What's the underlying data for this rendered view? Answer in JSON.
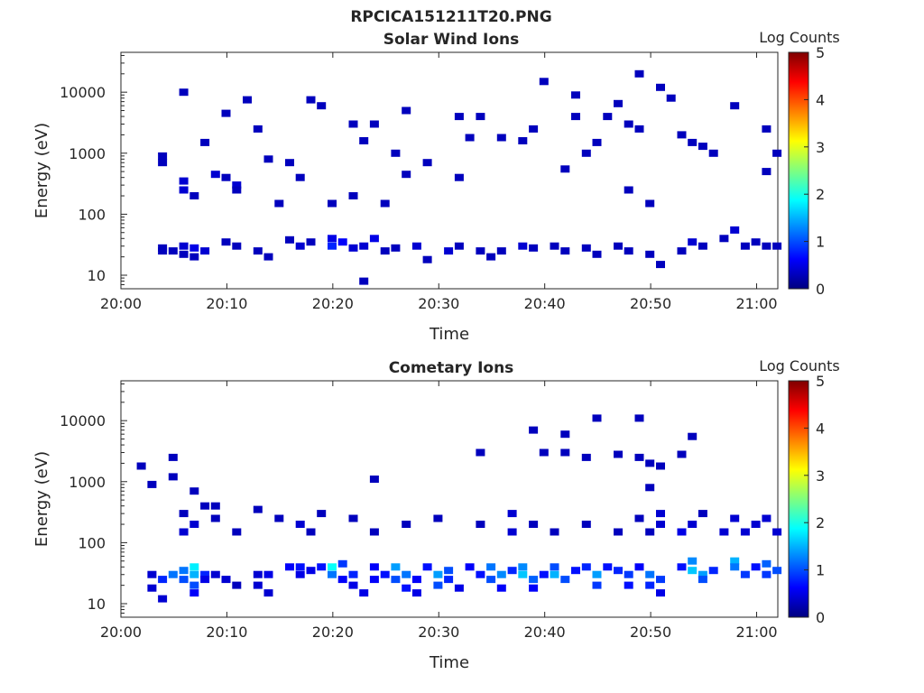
{
  "figure_title": "RPCICA151211T20.PNG",
  "chart_data": [
    {
      "type": "heatmap",
      "title": "Solar Wind Ions",
      "xlabel": "Time",
      "ylabel": "Energy (eV)",
      "x_range": [
        "20:00",
        "21:02"
      ],
      "y_range": [
        6,
        45000
      ],
      "yscale": "log",
      "x_ticks": [
        "20:00",
        "20:10",
        "20:20",
        "20:30",
        "20:40",
        "20:50",
        "21:00"
      ],
      "y_ticks": [
        "10",
        "100",
        "1000",
        "10000"
      ],
      "colorbar": {
        "label": "Log Counts",
        "min": 0,
        "max": 5,
        "ticks": [
          "0",
          "1",
          "2",
          "3",
          "4",
          "5"
        ],
        "colormap": "jet"
      },
      "grid": false,
      "points": [
        [
          "20:04",
          25,
          0.3
        ],
        [
          "20:04",
          28,
          0.3
        ],
        [
          "20:05",
          25,
          0.3
        ],
        [
          "20:06",
          30,
          0.4
        ],
        [
          "20:06",
          22,
          0.3
        ],
        [
          "20:07",
          28,
          0.5
        ],
        [
          "20:07",
          20,
          0.3
        ],
        [
          "20:08",
          25,
          0.4
        ],
        [
          "20:10",
          35,
          0.3
        ],
        [
          "20:11",
          30,
          0.3
        ],
        [
          "20:13",
          25,
          0.3
        ],
        [
          "20:14",
          20,
          0.3
        ],
        [
          "20:16",
          38,
          0.3
        ],
        [
          "20:17",
          30,
          0.4
        ],
        [
          "20:18",
          35,
          0.3
        ],
        [
          "20:20",
          40,
          0.5
        ],
        [
          "20:20",
          30,
          0.8
        ],
        [
          "20:21",
          35,
          0.6
        ],
        [
          "20:22",
          28,
          0.4
        ],
        [
          "20:23",
          8,
          0.3
        ],
        [
          "20:23",
          30,
          0.4
        ],
        [
          "20:24",
          40,
          0.5
        ],
        [
          "20:25",
          25,
          0.3
        ],
        [
          "20:26",
          28,
          0.3
        ],
        [
          "20:28",
          30,
          0.4
        ],
        [
          "20:29",
          18,
          0.3
        ],
        [
          "20:31",
          25,
          0.4
        ],
        [
          "20:32",
          30,
          0.3
        ],
        [
          "20:34",
          25,
          0.3
        ],
        [
          "20:35",
          20,
          0.3
        ],
        [
          "20:36",
          25,
          0.3
        ],
        [
          "20:38",
          30,
          0.4
        ],
        [
          "20:39",
          28,
          0.3
        ],
        [
          "20:41",
          30,
          0.3
        ],
        [
          "20:42",
          25,
          0.3
        ],
        [
          "20:44",
          28,
          0.3
        ],
        [
          "20:45",
          22,
          0.3
        ],
        [
          "20:47",
          30,
          0.3
        ],
        [
          "20:48",
          25,
          0.3
        ],
        [
          "20:50",
          22,
          0.3
        ],
        [
          "20:51",
          15,
          0.3
        ],
        [
          "20:53",
          25,
          0.3
        ],
        [
          "20:54",
          35,
          0.4
        ],
        [
          "20:55",
          30,
          0.3
        ],
        [
          "20:57",
          40,
          0.3
        ],
        [
          "20:58",
          55,
          0.4
        ],
        [
          "20:59",
          30,
          0.3
        ],
        [
          "21:00",
          35,
          0.3
        ],
        [
          "21:01",
          30,
          0.3
        ],
        [
          "21:02",
          30,
          0.3
        ],
        [
          "20:06",
          350,
          0.4
        ],
        [
          "20:06",
          250,
          0.4
        ],
        [
          "20:07",
          200,
          0.3
        ],
        [
          "20:09",
          450,
          0.4
        ],
        [
          "20:10",
          400,
          0.3
        ],
        [
          "20:11",
          300,
          0.4
        ],
        [
          "20:11",
          250,
          0.3
        ],
        [
          "20:04",
          900,
          0.3
        ],
        [
          "20:04",
          700,
          0.3
        ],
        [
          "20:06",
          10000,
          0.3
        ],
        [
          "20:08",
          1500,
          0.3
        ],
        [
          "20:10",
          4500,
          0.3
        ],
        [
          "20:12",
          7500,
          0.3
        ],
        [
          "20:13",
          2500,
          0.3
        ],
        [
          "20:14",
          800,
          0.3
        ],
        [
          "20:15",
          150,
          0.3
        ],
        [
          "20:16",
          700,
          0.3
        ],
        [
          "20:17",
          400,
          0.3
        ],
        [
          "20:18",
          7500,
          0.3
        ],
        [
          "20:19",
          6000,
          0.3
        ],
        [
          "20:20",
          150,
          0.3
        ],
        [
          "20:22",
          3000,
          0.3
        ],
        [
          "20:22",
          200,
          0.3
        ],
        [
          "20:23",
          1600,
          0.3
        ],
        [
          "20:24",
          3000,
          0.3
        ],
        [
          "20:25",
          150,
          0.3
        ],
        [
          "20:26",
          1000,
          0.3
        ],
        [
          "20:27",
          5000,
          0.3
        ],
        [
          "20:27",
          450,
          0.3
        ],
        [
          "20:29",
          700,
          0.3
        ],
        [
          "20:32",
          4000,
          0.3
        ],
        [
          "20:32",
          400,
          0.3
        ],
        [
          "20:33",
          1800,
          0.3
        ],
        [
          "20:34",
          4000,
          0.3
        ],
        [
          "20:36",
          1800,
          0.3
        ],
        [
          "20:38",
          1600,
          0.3
        ],
        [
          "20:39",
          2500,
          0.3
        ],
        [
          "20:40",
          15000,
          0.3
        ],
        [
          "20:42",
          550,
          0.3
        ],
        [
          "20:43",
          9000,
          0.3
        ],
        [
          "20:43",
          4000,
          0.3
        ],
        [
          "20:44",
          1000,
          0.3
        ],
        [
          "20:45",
          1500,
          0.3
        ],
        [
          "20:46",
          4000,
          0.3
        ],
        [
          "20:47",
          6500,
          0.3
        ],
        [
          "20:48",
          3000,
          0.3
        ],
        [
          "20:48",
          250,
          0.3
        ],
        [
          "20:49",
          20000,
          0.3
        ],
        [
          "20:49",
          2500,
          0.3
        ],
        [
          "20:50",
          150,
          0.3
        ],
        [
          "20:51",
          12000,
          0.3
        ],
        [
          "20:52",
          8000,
          0.3
        ],
        [
          "20:53",
          2000,
          0.3
        ],
        [
          "20:54",
          1500,
          0.3
        ],
        [
          "20:55",
          1300,
          0.3
        ],
        [
          "20:56",
          1000,
          0.3
        ],
        [
          "20:58",
          6000,
          0.3
        ],
        [
          "21:01",
          2500,
          0.3
        ],
        [
          "21:01",
          500,
          0.3
        ],
        [
          "21:02",
          1000,
          0.3
        ]
      ]
    },
    {
      "type": "heatmap",
      "title": "Cometary Ions",
      "xlabel": "Time",
      "ylabel": "Energy (eV)",
      "x_range": [
        "20:00",
        "21:02"
      ],
      "y_range": [
        6,
        45000
      ],
      "yscale": "log",
      "x_ticks": [
        "20:00",
        "20:10",
        "20:20",
        "20:30",
        "20:40",
        "20:50",
        "21:00"
      ],
      "y_ticks": [
        "10",
        "100",
        "1000",
        "10000"
      ],
      "colorbar": {
        "label": "Log Counts",
        "min": 0,
        "max": 5,
        "ticks": [
          "0",
          "1",
          "2",
          "3",
          "4",
          "5"
        ],
        "colormap": "jet"
      },
      "grid": false,
      "points": [
        [
          "20:03",
          30,
          0.4
        ],
        [
          "20:03",
          18,
          0.4
        ],
        [
          "20:04",
          12,
          0.4
        ],
        [
          "20:04",
          25,
          0.8
        ],
        [
          "20:05",
          30,
          1.2
        ],
        [
          "20:06",
          35,
          1.2
        ],
        [
          "20:06",
          25,
          1.0
        ],
        [
          "20:07",
          40,
          1.8
        ],
        [
          "20:07",
          30,
          1.5
        ],
        [
          "20:07",
          20,
          1.0
        ],
        [
          "20:07",
          15,
          0.6
        ],
        [
          "20:08",
          30,
          0.8
        ],
        [
          "20:08",
          25,
          0.5
        ],
        [
          "20:09",
          30,
          0.4
        ],
        [
          "20:10",
          25,
          0.4
        ],
        [
          "20:11",
          20,
          0.3
        ],
        [
          "20:13",
          30,
          0.4
        ],
        [
          "20:13",
          20,
          0.4
        ],
        [
          "20:14",
          30,
          0.5
        ],
        [
          "20:14",
          15,
          0.4
        ],
        [
          "20:16",
          40,
          0.6
        ],
        [
          "20:17",
          40,
          0.7
        ],
        [
          "20:17",
          30,
          0.5
        ],
        [
          "20:18",
          35,
          0.5
        ],
        [
          "20:19",
          40,
          0.7
        ],
        [
          "20:20",
          40,
          1.9
        ],
        [
          "20:20",
          30,
          1.2
        ],
        [
          "20:21",
          45,
          0.9
        ],
        [
          "20:21",
          25,
          0.6
        ],
        [
          "20:22",
          30,
          0.8
        ],
        [
          "20:22",
          20,
          0.5
        ],
        [
          "20:23",
          15,
          0.5
        ],
        [
          "20:24",
          40,
          0.6
        ],
        [
          "20:24",
          25,
          0.6
        ],
        [
          "20:25",
          30,
          0.7
        ],
        [
          "20:26",
          40,
          1.4
        ],
        [
          "20:26",
          25,
          1.0
        ],
        [
          "20:27",
          30,
          1.2
        ],
        [
          "20:27",
          18,
          0.7
        ],
        [
          "20:28",
          25,
          0.6
        ],
        [
          "20:28",
          15,
          0.5
        ],
        [
          "20:29",
          40,
          0.7
        ],
        [
          "20:30",
          30,
          1.4
        ],
        [
          "20:30",
          20,
          1.0
        ],
        [
          "20:31",
          35,
          1.0
        ],
        [
          "20:31",
          25,
          0.8
        ],
        [
          "20:32",
          18,
          0.5
        ],
        [
          "20:33",
          40,
          0.6
        ],
        [
          "20:34",
          30,
          0.7
        ],
        [
          "20:35",
          40,
          1.2
        ],
        [
          "20:35",
          25,
          1.0
        ],
        [
          "20:36",
          30,
          1.3
        ],
        [
          "20:36",
          18,
          0.6
        ],
        [
          "20:37",
          35,
          0.8
        ],
        [
          "20:38",
          40,
          1.3
        ],
        [
          "20:38",
          30,
          1.6
        ],
        [
          "20:39",
          25,
          1.1
        ],
        [
          "20:39",
          18,
          0.6
        ],
        [
          "20:40",
          30,
          0.7
        ],
        [
          "20:41",
          40,
          1.0
        ],
        [
          "20:41",
          30,
          1.5
        ],
        [
          "20:42",
          25,
          1.0
        ],
        [
          "20:43",
          35,
          0.7
        ],
        [
          "20:44",
          40,
          0.8
        ],
        [
          "20:45",
          30,
          1.4
        ],
        [
          "20:45",
          20,
          0.9
        ],
        [
          "20:46",
          40,
          0.7
        ],
        [
          "20:47",
          35,
          0.8
        ],
        [
          "20:48",
          30,
          0.9
        ],
        [
          "20:48",
          20,
          0.7
        ],
        [
          "20:49",
          40,
          0.6
        ],
        [
          "20:50",
          30,
          1.2
        ],
        [
          "20:50",
          20,
          0.8
        ],
        [
          "20:51",
          25,
          0.9
        ],
        [
          "20:51",
          15,
          0.5
        ],
        [
          "20:53",
          40,
          0.7
        ],
        [
          "20:54",
          50,
          1.3
        ],
        [
          "20:54",
          35,
          1.6
        ],
        [
          "20:55",
          30,
          1.4
        ],
        [
          "20:55",
          25,
          1.0
        ],
        [
          "20:56",
          35,
          0.8
        ],
        [
          "20:58",
          50,
          1.5
        ],
        [
          "20:58",
          40,
          1.2
        ],
        [
          "20:59",
          30,
          0.9
        ],
        [
          "21:00",
          40,
          0.7
        ],
        [
          "21:01",
          45,
          1.1
        ],
        [
          "21:01",
          30,
          0.9
        ],
        [
          "21:02",
          35,
          1.0
        ],
        [
          "20:06",
          150,
          0.4
        ],
        [
          "20:06",
          300,
          0.3
        ],
        [
          "20:07",
          200,
          0.4
        ],
        [
          "20:08",
          400,
          0.3
        ],
        [
          "20:09",
          250,
          0.3
        ],
        [
          "20:11",
          150,
          0.3
        ],
        [
          "20:13",
          350,
          0.3
        ],
        [
          "20:15",
          250,
          0.3
        ],
        [
          "20:17",
          200,
          0.4
        ],
        [
          "20:18",
          150,
          0.3
        ],
        [
          "20:19",
          300,
          0.3
        ],
        [
          "20:22",
          250,
          0.3
        ],
        [
          "20:24",
          150,
          0.3
        ],
        [
          "20:27",
          200,
          0.3
        ],
        [
          "20:30",
          250,
          0.3
        ],
        [
          "20:34",
          200,
          0.3
        ],
        [
          "20:37",
          300,
          0.4
        ],
        [
          "20:37",
          150,
          0.4
        ],
        [
          "20:39",
          200,
          0.3
        ],
        [
          "20:41",
          150,
          0.3
        ],
        [
          "20:44",
          200,
          0.3
        ],
        [
          "20:47",
          150,
          0.3
        ],
        [
          "20:49",
          250,
          0.3
        ],
        [
          "20:50",
          150,
          0.3
        ],
        [
          "20:51",
          300,
          0.4
        ],
        [
          "20:51",
          200,
          0.4
        ],
        [
          "20:53",
          150,
          0.5
        ],
        [
          "20:54",
          200,
          0.4
        ],
        [
          "20:55",
          300,
          0.3
        ],
        [
          "20:57",
          150,
          0.4
        ],
        [
          "20:58",
          250,
          0.4
        ],
        [
          "20:59",
          150,
          0.4
        ],
        [
          "21:00",
          200,
          0.4
        ],
        [
          "21:01",
          250,
          0.4
        ],
        [
          "21:02",
          150,
          0.4
        ],
        [
          "20:02",
          1800,
          0.3
        ],
        [
          "20:03",
          900,
          0.3
        ],
        [
          "20:05",
          2500,
          0.3
        ],
        [
          "20:05",
          1200,
          0.3
        ],
        [
          "20:07",
          700,
          0.3
        ],
        [
          "20:09",
          400,
          0.3
        ],
        [
          "20:24",
          1100,
          0.3
        ],
        [
          "20:34",
          3000,
          0.3
        ],
        [
          "20:39",
          7000,
          0.3
        ],
        [
          "20:40",
          3000,
          0.3
        ],
        [
          "20:42",
          6000,
          0.3
        ],
        [
          "20:42",
          3000,
          0.3
        ],
        [
          "20:44",
          2500,
          0.3
        ],
        [
          "20:45",
          11000,
          0.3
        ],
        [
          "20:47",
          2800,
          0.3
        ],
        [
          "20:49",
          11000,
          0.3
        ],
        [
          "20:49",
          2500,
          0.3
        ],
        [
          "20:50",
          2000,
          0.3
        ],
        [
          "20:50",
          800,
          0.3
        ],
        [
          "20:51",
          1800,
          0.3
        ],
        [
          "20:53",
          2800,
          0.3
        ],
        [
          "20:54",
          5500,
          0.3
        ]
      ]
    }
  ]
}
